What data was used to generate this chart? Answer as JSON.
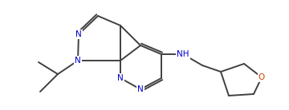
{
  "bg_color": "#ffffff",
  "bond_color": "#404040",
  "figsize": [
    3.6,
    1.38
  ],
  "dpi": 100,
  "line_width": 1.4,
  "font_size": 7.5,
  "N_color": "#0000cd",
  "O_color": "#cc4400",
  "atoms": {
    "N1_label": "N",
    "N2_label": "N",
    "N3_label": "N",
    "NH_label": "NH",
    "O_label": "O"
  }
}
